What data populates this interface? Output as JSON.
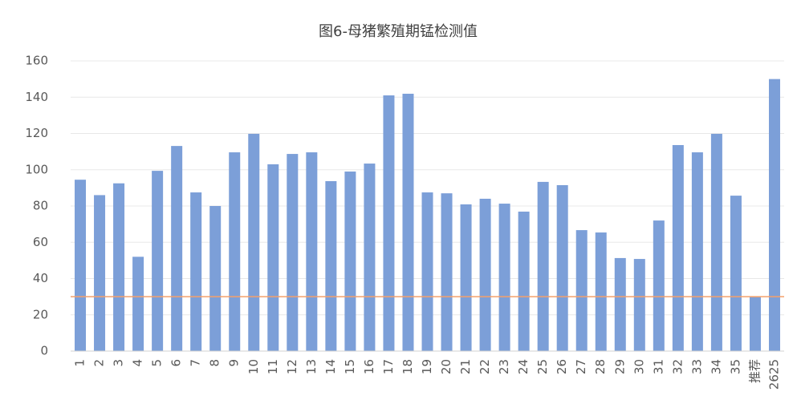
{
  "chart_data": {
    "type": "bar",
    "title": "图6-母猪繁殖期锰检测值",
    "categories": [
      "1",
      "2",
      "3",
      "4",
      "5",
      "6",
      "7",
      "8",
      "9",
      "10",
      "11",
      "12",
      "13",
      "14",
      "15",
      "16",
      "17",
      "18",
      "19",
      "20",
      "21",
      "22",
      "23",
      "24",
      "25",
      "26",
      "27",
      "28",
      "29",
      "30",
      "31",
      "32",
      "33",
      "34",
      "35",
      "推荐",
      "2625"
    ],
    "values": [
      94.5,
      86,
      92.5,
      52,
      99.4,
      113.1,
      87.5,
      80,
      109.6,
      119.8,
      103,
      108.7,
      109.6,
      93.7,
      99,
      103.4,
      141,
      141.9,
      87.5,
      87,
      80.9,
      84,
      81.3,
      76.9,
      93.3,
      91.5,
      66.7,
      65.4,
      51.3,
      50.8,
      72,
      113.6,
      109.6,
      119.8,
      85.7,
      30,
      150
    ],
    "color": "#7c9fd8",
    "reference_line": 30,
    "reference_color": "#f4a06a",
    "ylim": [
      0,
      160
    ],
    "yticks": [
      0,
      20,
      40,
      60,
      80,
      100,
      120,
      140,
      160
    ],
    "grid": true
  }
}
